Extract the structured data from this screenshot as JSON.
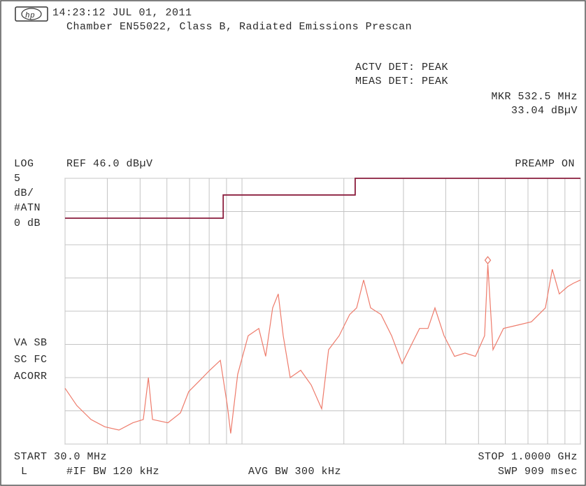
{
  "header": {
    "timestamp": "14:23:12 JUL 01, 2011",
    "title": "Chamber EN55022, Class B, Radiated Emissions Prescan",
    "actv_det": "ACTV DET: PEAK",
    "meas_det": "MEAS DET: PEAK"
  },
  "labels": {
    "scale_mode": "LOG",
    "ref": "REF 46.0 dBµV",
    "preamp": "PREAMP ON",
    "scale_num": "5",
    "scale_unit": "dB/",
    "atten_label": "#ATN",
    "atten": "0 dB",
    "flags1": "VA SB",
    "flags2": "SC FC",
    "flags3": "ACORR",
    "start": "START 30.0 MHz",
    "stop": "STOP 1.0000 GHz",
    "mode": "L",
    "if_bw": "#IF BW 120 kHz",
    "avg_bw": "AVG BW 300 kHz",
    "sweep": "SWP 909 msec"
  },
  "chart_data": {
    "type": "line",
    "xlog": true,
    "xlim": [
      30,
      1000
    ],
    "ylim": [
      6,
      46
    ],
    "xticks": [
      30,
      40,
      50,
      60,
      70,
      80,
      90,
      100,
      200,
      300,
      400,
      500,
      600,
      700,
      800,
      900,
      1000
    ],
    "yticks": [
      6,
      11,
      16,
      21,
      26,
      31,
      36,
      41,
      46
    ],
    "grid": true,
    "marker": {
      "x": 532.5,
      "value": 33.04,
      "label_x": "MKR 532.5 MHz",
      "label": "33.04 dBµV",
      "color": "#e87868"
    },
    "series": [
      {
        "color": "#ee7b6b",
        "x": [
          30,
          32.5,
          35.8,
          39.3,
          43.3,
          47.6,
          51.1,
          52.9,
          54.4,
          60.4,
          65.8,
          69.6,
          74.8,
          80.3,
          86.3,
          90.5,
          92.6,
          97.1,
          104.3,
          112.1,
          117.5,
          123.2,
          128.0,
          132.4,
          138.8,
          149.1,
          160.1,
          172.0,
          180.3,
          193.7,
          208.0,
          218.2,
          228.8,
          239.9,
          257.6,
          276.7,
          297.2,
          319.2,
          334.7,
          354.4,
          371.7,
          395.5,
          424.6,
          456.0,
          489.7,
          521,
          532.5,
          551.6,
          592.4,
          651.5,
          716.5,
          788,
          826,
          866,
          917,
          953,
          1000
        ],
        "values": [
          14.4,
          11.8,
          9.7,
          8.6,
          8.1,
          9.2,
          9.7,
          16.0,
          9.7,
          9.2,
          10.7,
          13.9,
          15.5,
          17.1,
          18.6,
          11.8,
          7.6,
          16.5,
          22.3,
          23.4,
          19.2,
          26.5,
          28.6,
          22.3,
          16.0,
          17.1,
          14.9,
          11.3,
          20.2,
          22.3,
          25.5,
          26.5,
          30.7,
          26.5,
          25.5,
          22.3,
          18.1,
          21.3,
          23.4,
          23.4,
          26.5,
          22.3,
          19.2,
          19.7,
          19.2,
          22.3,
          33.04,
          20.2,
          23.4,
          23.9,
          24.4,
          26.5,
          32.3,
          28.6,
          29.7,
          30.2,
          30.7
        ]
      },
      {
        "color": "#8a1c3c",
        "x": [
          30,
          88,
          88,
          216,
          216,
          1000
        ],
        "values": [
          40,
          40,
          43.5,
          43.5,
          46,
          46
        ]
      }
    ]
  }
}
